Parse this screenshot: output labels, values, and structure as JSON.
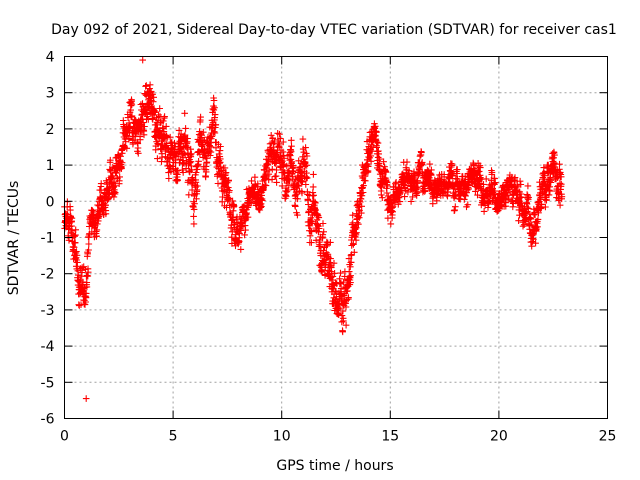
{
  "chart_data": {
    "type": "scatter",
    "title": "Day 092 of 2021, Sidereal Day-to-day VTEC variation (SDTVAR) for receiver cas1",
    "xlabel": "GPS time / hours",
    "ylabel": "SDTVAR / TECUs",
    "xlim": [
      0,
      25
    ],
    "ylim": [
      -6,
      4
    ],
    "xticks": [
      0,
      5,
      10,
      15,
      20,
      25
    ],
    "yticks": [
      -6,
      -5,
      -4,
      -3,
      -2,
      -1,
      0,
      1,
      2,
      3,
      4
    ],
    "xtick_labels": [
      "0",
      "5",
      "10",
      "15",
      "20",
      "25"
    ],
    "ytick_labels": [
      "-6",
      "-5",
      "-4",
      "-3",
      "-2",
      "-1",
      "0",
      "1",
      "2",
      "3",
      "4"
    ],
    "grid": true,
    "marker": "+",
    "color": "#ff0000",
    "series": [
      {
        "name": "SDTVAR",
        "points_per_hour_estimate": 120,
        "x_range": [
          0,
          22.9
        ],
        "trend": {
          "x": [
            0.0,
            0.3,
            0.6,
            0.9,
            1.2,
            1.6,
            2.0,
            2.5,
            3.0,
            3.5,
            4.0,
            4.5,
            5.0,
            5.5,
            6.0,
            6.5,
            7.0,
            7.5,
            8.0,
            8.5,
            9.0,
            9.5,
            10.0,
            10.5,
            11.0,
            11.5,
            12.0,
            12.5,
            13.0,
            13.5,
            14.0,
            14.3,
            14.6,
            15.0,
            15.5,
            16.0,
            16.5,
            17.0,
            17.5,
            18.0,
            18.5,
            19.0,
            19.5,
            20.0,
            20.5,
            21.0,
            21.5,
            22.0,
            22.5,
            22.9
          ],
          "y": [
            -0.5,
            -0.8,
            -2.0,
            -2.8,
            -0.6,
            -0.3,
            0.3,
            0.9,
            1.8,
            2.4,
            2.5,
            2.0,
            1.3,
            1.6,
            0.6,
            1.5,
            2.2,
            0.3,
            -1.3,
            0.2,
            0.0,
            1.3,
            1.1,
            0.7,
            0.6,
            -0.3,
            -1.4,
            -2.8,
            -2.2,
            -0.7,
            1.4,
            2.0,
            0.7,
            0.1,
            0.5,
            0.6,
            0.9,
            0.7,
            0.3,
            0.7,
            0.6,
            0.4,
            0.2,
            0.2,
            0.5,
            0.0,
            -0.6,
            0.3,
            1.0,
            0.6
          ],
          "spread": [
            0.9,
            1.0,
            1.4,
            1.2,
            1.0,
            0.9,
            1.0,
            1.0,
            1.1,
            1.2,
            1.2,
            1.1,
            1.2,
            1.3,
            1.4,
            1.3,
            1.3,
            1.4,
            1.2,
            0.8,
            0.8,
            1.0,
            1.3,
            1.3,
            1.5,
            1.4,
            1.3,
            1.5,
            1.3,
            1.2,
            1.0,
            1.0,
            0.9,
            0.9,
            0.8,
            0.8,
            0.9,
            0.8,
            0.8,
            0.9,
            0.8,
            0.9,
            0.9,
            0.8,
            0.9,
            0.9,
            1.1,
            1.0,
            1.2,
            1.3
          ]
        },
        "extremes": {
          "max": {
            "x": 3.6,
            "y": 3.9
          },
          "min": {
            "x": 1.0,
            "y": -5.45
          }
        }
      }
    ]
  }
}
